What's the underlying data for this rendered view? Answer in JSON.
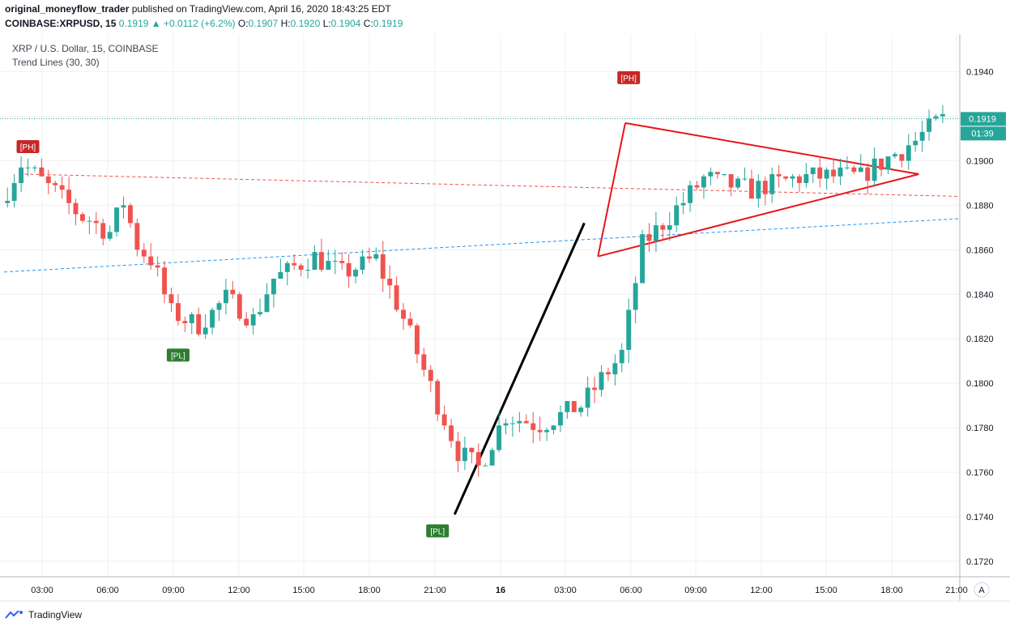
{
  "header": {
    "author": "original_moneyflow_trader",
    "published_text": "published on TradingView.com, April 16, 2020 18:43:25 EDT",
    "symbol": "COINBASE:XRPUSD, 15",
    "last": "0.1919",
    "change_arrow": "▲",
    "change": "+0.0112 (+6.2%)",
    "o_label": "O:",
    "o": "0.1907",
    "h_label": "H:",
    "h": "0.1920",
    "l_label": "L:",
    "l": "0.1904",
    "c_label": "C:",
    "c": "0.1919"
  },
  "legend": {
    "instrument": "XRP / U.S. Dollar, 15, COINBASE",
    "indicator": "Trend Lines (30, 30)"
  },
  "price_scale": {
    "last_price_label": "0.1919",
    "countdown_label": "01:39",
    "auto_button": "A"
  },
  "footer": {
    "brand": "TradingView"
  },
  "colors": {
    "up": "#26a69a",
    "down": "#ef5350",
    "grid": "#eef0f3",
    "triangle": "#e8151b",
    "trend_black": "#000000",
    "resistance_dashed": "#ef5350",
    "support_dashed": "#2196f3",
    "pivot_high": "#c62828",
    "pivot_low": "#2e7d32"
  },
  "chart_data": {
    "type": "candlestick",
    "title": "XRP / U.S. Dollar, 15, COINBASE",
    "interval": "15",
    "x_tick_labels": [
      "03:00",
      "06:00",
      "09:00",
      "12:00",
      "15:00",
      "18:00",
      "21:00",
      "16",
      "03:00",
      "06:00",
      "09:00",
      "12:00",
      "15:00",
      "18:00",
      "21:00"
    ],
    "y_tick_labels": [
      "0.1720",
      "0.1740",
      "0.1760",
      "0.1780",
      "0.1800",
      "0.1820",
      "0.1840",
      "0.1860",
      "0.1880",
      "0.1900",
      "0.1920",
      "0.1940"
    ],
    "ylim": [
      0.1713,
      0.1957
    ],
    "x_range_bars": [
      0,
      140
    ],
    "candles": [],
    "anchors": [
      [
        0,
        0.1881
      ],
      [
        3,
        0.1899
      ],
      [
        12,
        0.1875
      ],
      [
        16,
        0.1868
      ],
      [
        18,
        0.1882
      ],
      [
        20,
        0.1862
      ],
      [
        22,
        0.1856
      ],
      [
        25,
        0.1832
      ],
      [
        29,
        0.1826
      ],
      [
        33,
        0.1838
      ],
      [
        37,
        0.1829
      ],
      [
        40,
        0.1847
      ],
      [
        46,
        0.1857
      ],
      [
        50,
        0.1849
      ],
      [
        55,
        0.1856
      ],
      [
        59,
        0.1829
      ],
      [
        63,
        0.1798
      ],
      [
        67,
        0.1769
      ],
      [
        70,
        0.1762
      ],
      [
        74,
        0.1786
      ],
      [
        79,
        0.1781
      ],
      [
        85,
        0.179
      ],
      [
        91,
        0.1813
      ],
      [
        94,
        0.1862
      ],
      [
        98,
        0.1875
      ],
      [
        103,
        0.1892
      ],
      [
        110,
        0.1887
      ],
      [
        118,
        0.1893
      ],
      [
        126,
        0.1893
      ],
      [
        134,
        0.1909
      ],
      [
        138,
        0.1919
      ]
    ],
    "pivots": [
      {
        "label": "[PH]",
        "type": "high",
        "bar": 3,
        "price": 0.1902
      },
      {
        "label": "[PL]",
        "type": "low",
        "bar": 25,
        "price": 0.1817
      },
      {
        "label": "[PH]",
        "type": "high",
        "bar": 91,
        "price": 0.1933
      },
      {
        "label": "[PL]",
        "type": "low",
        "bar": 63,
        "price": 0.1738
      }
    ],
    "trend_lines": [
      {
        "name": "resistance",
        "style": "dashed",
        "from": [
          3,
          0.1894
        ],
        "to": [
          140,
          0.1884
        ]
      },
      {
        "name": "support",
        "style": "dashed",
        "from": [
          0,
          0.185
        ],
        "to": [
          140,
          0.1874
        ]
      },
      {
        "name": "trend",
        "style": "solid",
        "from": [
          66,
          0.1741
        ],
        "to": [
          85,
          0.1872
        ]
      },
      {
        "name": "triangle-top",
        "style": "solid",
        "from": [
          91,
          0.1917
        ],
        "to": [
          134,
          0.1894
        ]
      },
      {
        "name": "triangle-bottom",
        "style": "solid",
        "from": [
          87,
          0.1857
        ],
        "to": [
          134,
          0.1894
        ]
      },
      {
        "name": "triangle-left",
        "style": "solid",
        "from": [
          87,
          0.1857
        ],
        "to": [
          91,
          0.1917
        ]
      }
    ],
    "last_price": 0.1919
  }
}
